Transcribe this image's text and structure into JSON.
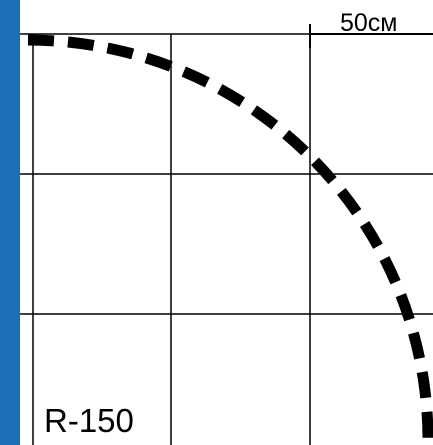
{
  "scale": {
    "label": "50см"
  },
  "radius_label": "R-150",
  "colors": {
    "frame_accent": "#1a6fb5",
    "grid_lines": "#000000",
    "arc": "#000000",
    "background": "#ffffff"
  },
  "diagram": {
    "grid": {
      "columns": 3,
      "rows": 3
    },
    "arc": {
      "style": "dashed",
      "description_type": "quarter-circle"
    }
  }
}
